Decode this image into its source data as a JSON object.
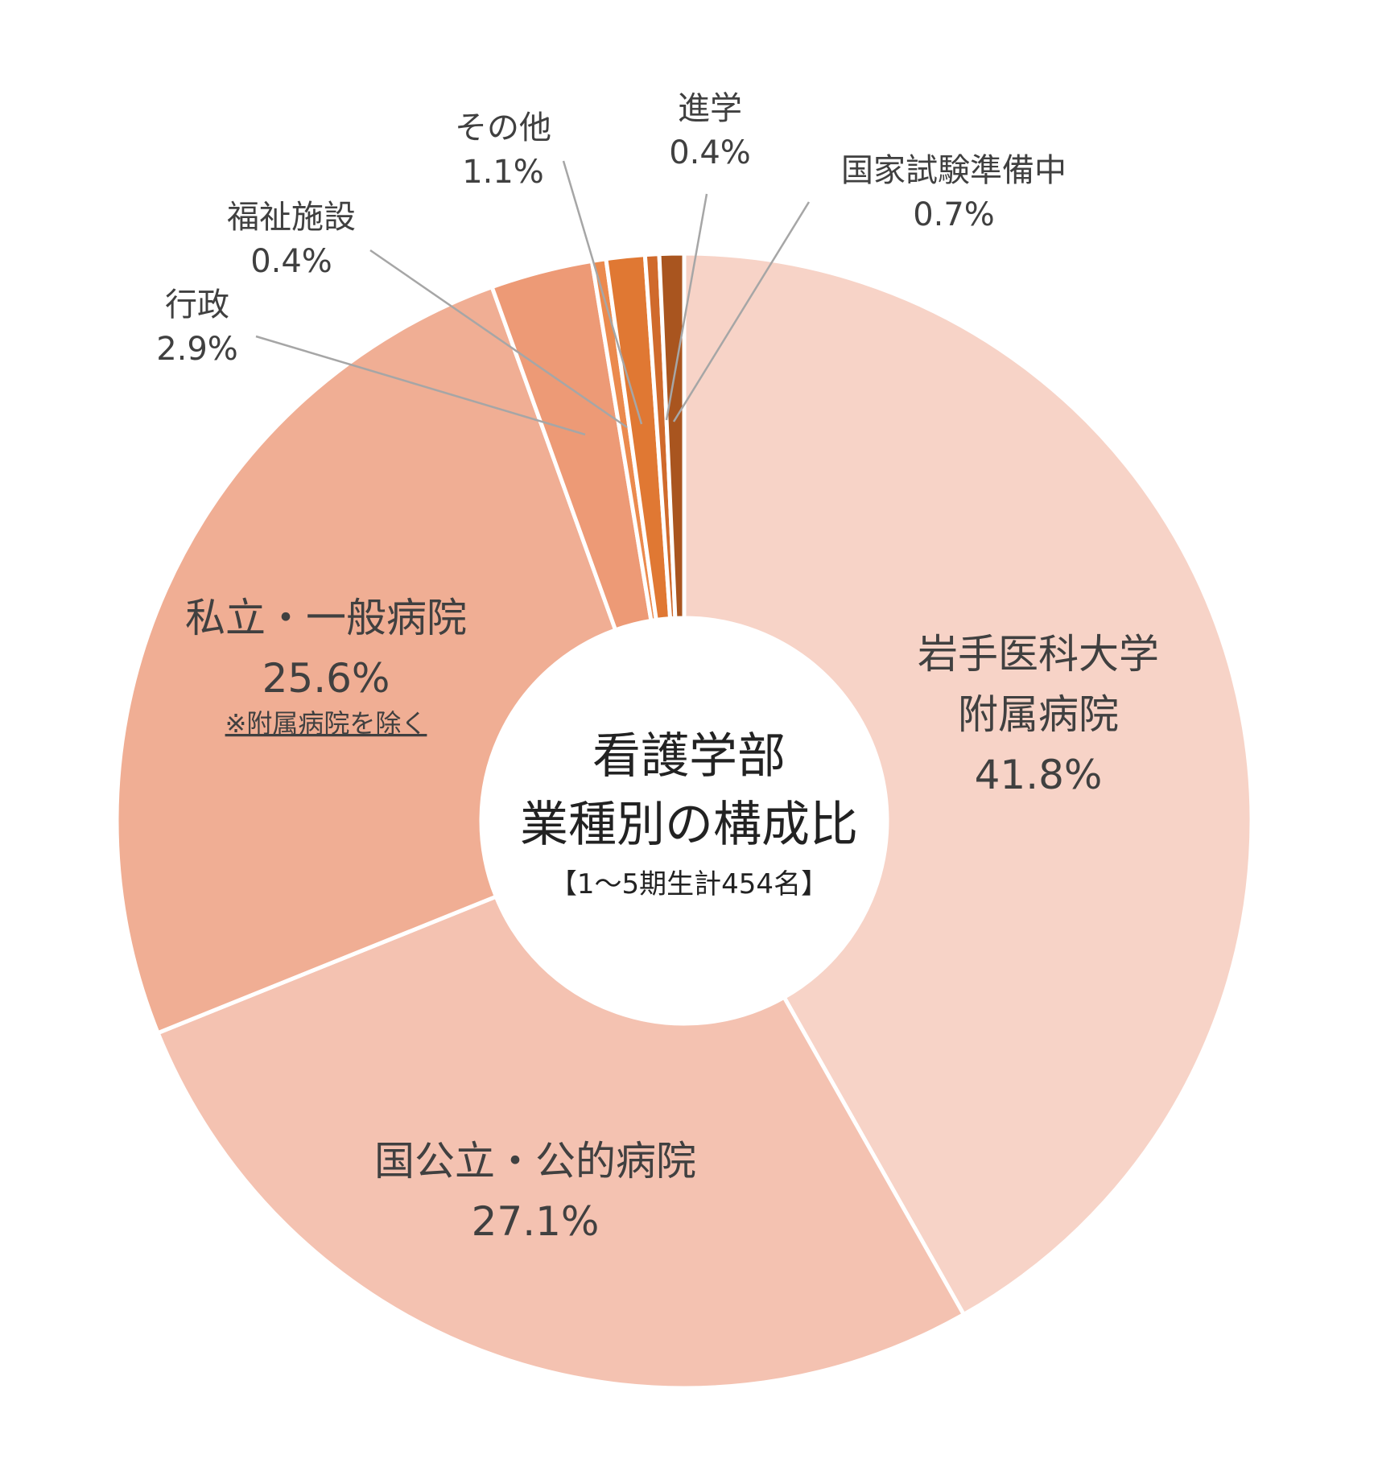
{
  "chart_data": {
    "type": "pie",
    "title": "看護学部",
    "subtitle": "業種別の構成比",
    "note": "【1～5期生計454名】",
    "slices": [
      {
        "label": "岩手医科大学附属病院",
        "label_lines": [
          "岩手医科大学",
          "附属病院"
        ],
        "value": 41.8,
        "value_text": "41.8%",
        "color": "#F7D3C7"
      },
      {
        "label": "国公立・公的病院",
        "label_lines": [
          "国公立・公的病院"
        ],
        "value": 27.1,
        "value_text": "27.1%",
        "color": "#F4C2B1"
      },
      {
        "label": "私立・一般病院",
        "label_lines": [
          "私立・一般病院"
        ],
        "value": 25.6,
        "value_text": "25.6%",
        "sub_note": "※附属病院を除く",
        "color": "#F0AE94"
      },
      {
        "label": "行政",
        "label_lines": [
          "行政"
        ],
        "value": 2.9,
        "value_text": "2.9%",
        "color": "#ED9A76"
      },
      {
        "label": "福祉施設",
        "label_lines": [
          "福祉施設"
        ],
        "value": 0.4,
        "value_text": "0.4%",
        "color": "#EB8A4E"
      },
      {
        "label": "その他",
        "label_lines": [
          "その他"
        ],
        "value": 1.1,
        "value_text": "1.1%",
        "color": "#E07833"
      },
      {
        "label": "進学",
        "label_lines": [
          "進学"
        ],
        "value": 0.4,
        "value_text": "0.4%",
        "color": "#D06A2C"
      },
      {
        "label": "国家試験準備中",
        "label_lines": [
          "国家試験準備中"
        ],
        "value": 0.7,
        "value_text": "0.7%",
        "color": "#A9551F"
      }
    ]
  }
}
